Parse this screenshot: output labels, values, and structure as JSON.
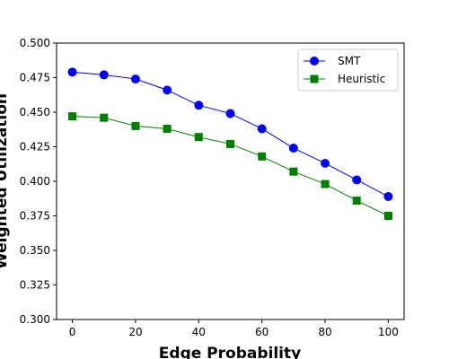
{
  "chart_data": {
    "type": "line",
    "title": "",
    "xlabel": "Edge Probability",
    "ylabel": "Weighted Utilization",
    "xlim": [
      -5,
      105
    ],
    "ylim": [
      0.3,
      0.5
    ],
    "x_ticks": [
      "0",
      "20",
      "40",
      "60",
      "80",
      "100"
    ],
    "y_ticks": [
      "0.300",
      "0.325",
      "0.350",
      "0.375",
      "0.400",
      "0.425",
      "0.450",
      "0.475",
      "0.500"
    ],
    "grid": false,
    "legend_position": "top-right",
    "x": [
      0,
      10,
      20,
      30,
      40,
      50,
      60,
      70,
      80,
      90,
      100
    ],
    "series": [
      {
        "name": "SMT",
        "color": "#0000ff",
        "marker": "circle",
        "values": [
          0.479,
          0.477,
          0.474,
          0.466,
          0.455,
          0.449,
          0.438,
          0.424,
          0.413,
          0.401,
          0.389
        ]
      },
      {
        "name": "Heuristic",
        "color": "#008000",
        "marker": "square",
        "values": [
          0.447,
          0.446,
          0.44,
          0.438,
          0.432,
          0.427,
          0.418,
          0.407,
          0.398,
          0.386,
          0.375
        ]
      }
    ]
  }
}
